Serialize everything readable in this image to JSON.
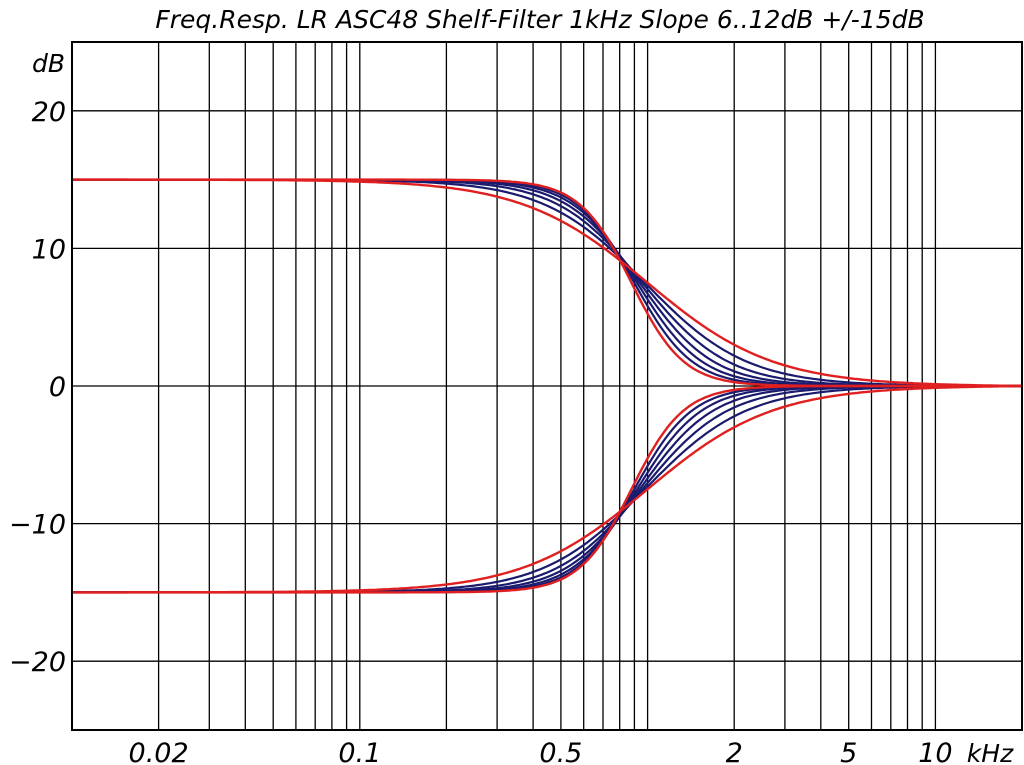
{
  "chart_data": {
    "type": "line",
    "title": "Freq.Resp. LR ASC48 Shelf-Filter 1kHz Slope 6..12dB +/-15dB",
    "ylabel": "dB",
    "xlabel": "kHz",
    "x_scale": "log",
    "xlim": [
      0.01,
      20
    ],
    "ylim": [
      -25,
      25
    ],
    "grid": true,
    "x_ticks": [
      {
        "value": 0.02,
        "label": "0.02"
      },
      {
        "value": 0.1,
        "label": "0.1"
      },
      {
        "value": 0.5,
        "label": "0.5"
      },
      {
        "value": 2,
        "label": "2"
      },
      {
        "value": 5,
        "label": "5"
      },
      {
        "value": 10,
        "label": "10"
      }
    ],
    "y_ticks": [
      {
        "value": 20,
        "label": "20"
      },
      {
        "value": 10,
        "label": "10"
      },
      {
        "value": 0,
        "label": "0"
      },
      {
        "value": -10,
        "label": "−10"
      },
      {
        "value": -20,
        "label": "−20"
      }
    ],
    "shelf_gain_db": [
      15,
      -15
    ],
    "slope_db_per_octave": [
      6,
      7,
      8,
      9,
      10,
      11,
      12
    ],
    "colors": {
      "edge_curves": "#e02020",
      "inner_curves": "#1a1a6e",
      "grid": "#000000"
    }
  }
}
